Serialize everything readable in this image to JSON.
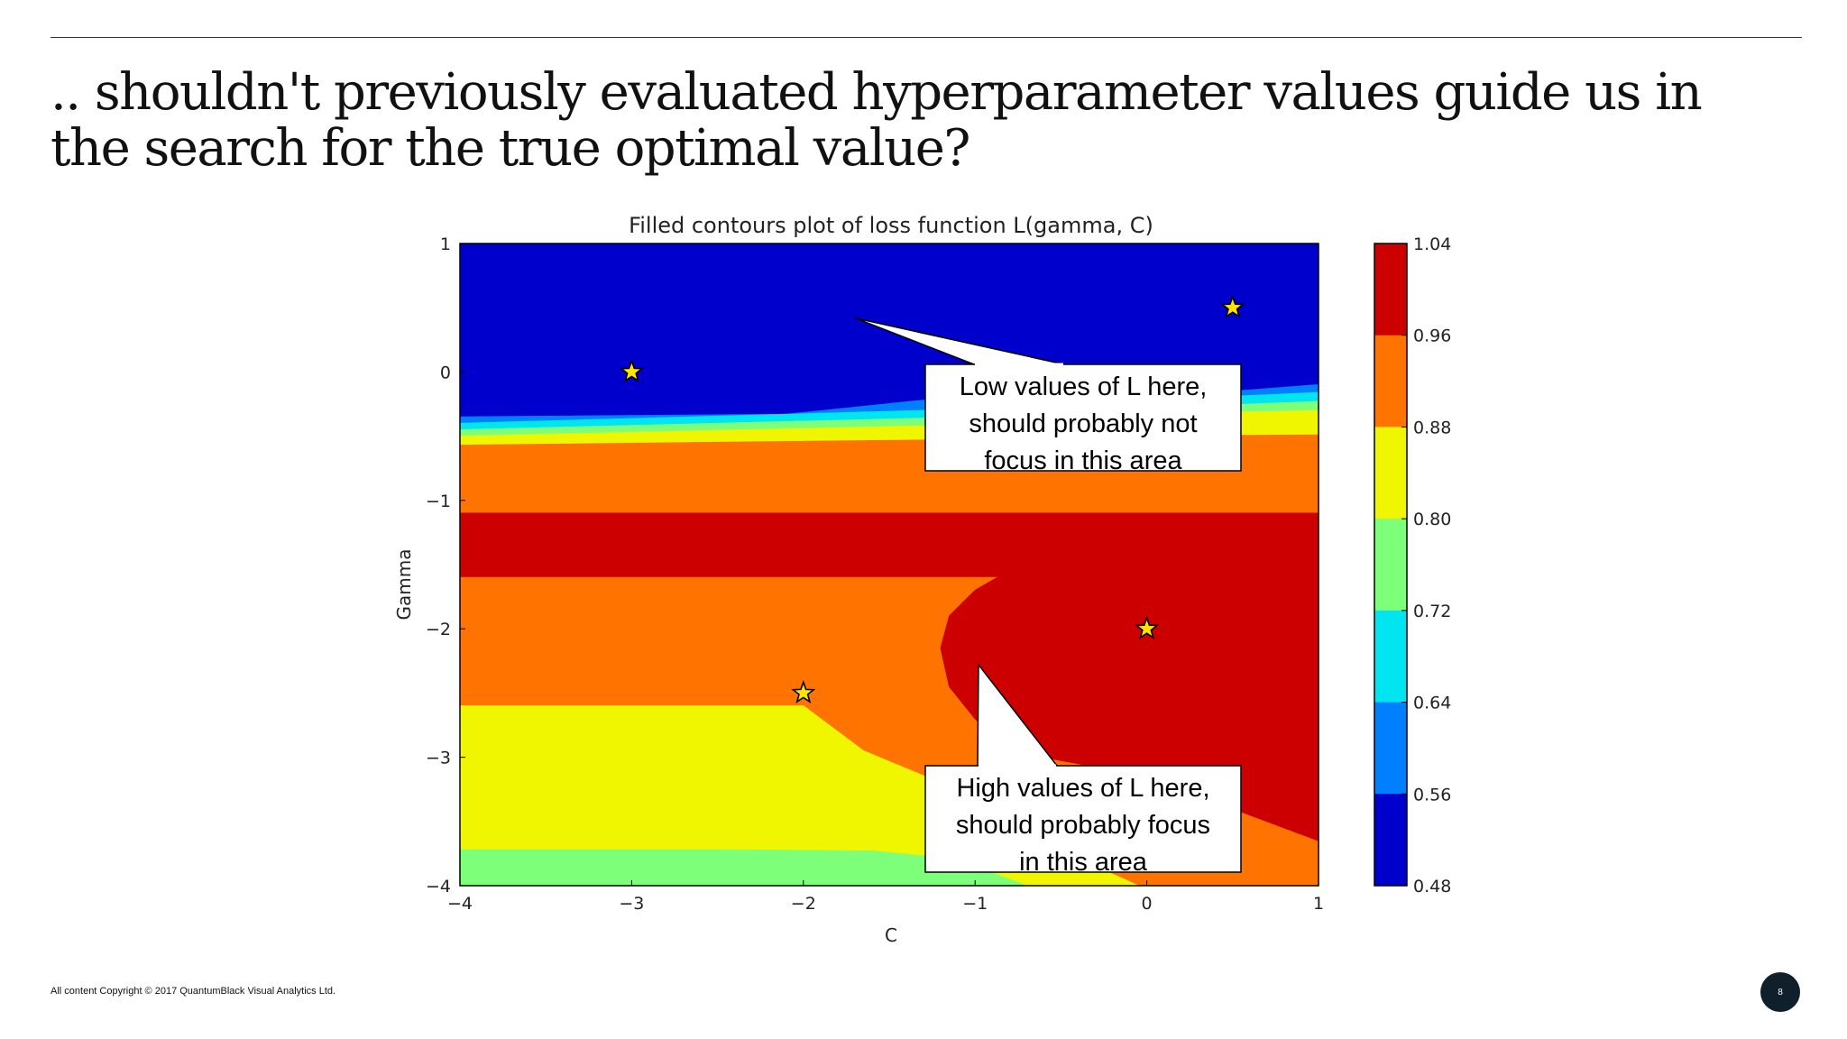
{
  "slide": {
    "title": ".. shouldn't previously evaluated hyperparameter values guide us in the search for the true optimal value?",
    "footer": "All content Copyright © 2017 QuantumBlack Visual Analytics Ltd.",
    "page_number": "8"
  },
  "chart_data": {
    "type": "heatmap",
    "subtype": "filled-contour",
    "title": "Filled contours plot of loss function L(gamma, C)",
    "xlabel": "C",
    "ylabel": "Gamma",
    "xlim": [
      -4,
      1
    ],
    "ylim": [
      -4,
      1
    ],
    "xticks": [
      "−4",
      "−3",
      "−2",
      "−1",
      "0",
      "1"
    ],
    "yticks": [
      "1",
      "0",
      "−1",
      "−2",
      "−3",
      "−4"
    ],
    "grid": false,
    "colorbar": {
      "levels": [
        "1.04",
        "0.96",
        "0.88",
        "0.80",
        "0.72",
        "0.64",
        "0.56",
        "0.48"
      ],
      "colors": [
        "#cc0000",
        "#ff7300",
        "#f0f500",
        "#7dff7a",
        "#00e5f0",
        "#0080ff",
        "#0000cc"
      ],
      "placement": "right"
    },
    "regions": [
      {
        "level": "0.48-0.56",
        "color": "#0000cc",
        "polygon": [
          [
            -4,
            1
          ],
          [
            1,
            1
          ],
          [
            1,
            -0.1
          ],
          [
            0.5,
            -0.15
          ],
          [
            -1.3,
            -0.22
          ],
          [
            -2.1,
            -0.33
          ],
          [
            -4,
            -0.35
          ]
        ]
      },
      {
        "level": "0.56-0.64",
        "color": "#0080ff",
        "polygon": [
          [
            -4,
            -0.35
          ],
          [
            -2.1,
            -0.33
          ],
          [
            -1.3,
            -0.22
          ],
          [
            0.5,
            -0.15
          ],
          [
            1,
            -0.1
          ],
          [
            1,
            -0.16
          ],
          [
            0,
            -0.22
          ],
          [
            -1.3,
            -0.3
          ],
          [
            -4,
            -0.4
          ]
        ]
      },
      {
        "level": "0.64-0.72",
        "color": "#00e5f0",
        "polygon": [
          [
            -4,
            -0.4
          ],
          [
            -1.3,
            -0.3
          ],
          [
            0,
            -0.22
          ],
          [
            1,
            -0.16
          ],
          [
            1,
            -0.23
          ],
          [
            0,
            -0.28
          ],
          [
            -1.3,
            -0.36
          ],
          [
            -4,
            -0.45
          ]
        ]
      },
      {
        "level": "0.72-0.80",
        "color": "#7dff7a",
        "polygon": [
          [
            -4,
            -0.45
          ],
          [
            -1.3,
            -0.36
          ],
          [
            0,
            -0.28
          ],
          [
            1,
            -0.23
          ],
          [
            1,
            -0.3
          ],
          [
            0,
            -0.33
          ],
          [
            -1.3,
            -0.42
          ],
          [
            -4,
            -0.5
          ]
        ]
      },
      {
        "level": "0.80-0.88",
        "color": "#f0f500",
        "polygon": [
          [
            -4,
            -0.5
          ],
          [
            -1.3,
            -0.42
          ],
          [
            0,
            -0.33
          ],
          [
            1,
            -0.3
          ],
          [
            1,
            -0.49
          ],
          [
            0,
            -0.5
          ],
          [
            -1.3,
            -0.53
          ],
          [
            -4,
            -0.57
          ]
        ]
      },
      {
        "level": "0.88-0.96",
        "color": "#ff7300",
        "polygon": [
          [
            -4,
            -0.57
          ],
          [
            -1.3,
            -0.53
          ],
          [
            0,
            -0.5
          ],
          [
            1,
            -0.49
          ],
          [
            1,
            -1.1
          ],
          [
            -4,
            -1.1
          ]
        ]
      },
      {
        "level": "0.96-1.04",
        "color": "#cc0000",
        "polygon": [
          [
            -4,
            -1.1
          ],
          [
            1,
            -1.1
          ],
          [
            1,
            -1.6
          ],
          [
            -4,
            -1.6
          ]
        ]
      },
      {
        "level": "0.88-0.96",
        "color": "#ff7300",
        "polygon": [
          [
            -4,
            -1.6
          ],
          [
            -0.87,
            -1.6
          ],
          [
            -1.0,
            -1.7
          ],
          [
            -1.15,
            -1.9
          ],
          [
            -1.2,
            -2.15
          ],
          [
            -1.15,
            -2.45
          ],
          [
            -1.0,
            -2.7
          ],
          [
            -0.85,
            -2.9
          ],
          [
            -0.6,
            -3.0
          ],
          [
            -0.2,
            -3.1
          ],
          [
            0.3,
            -3.3
          ],
          [
            0.6,
            -3.45
          ],
          [
            1,
            -3.65
          ],
          [
            1,
            -4
          ],
          [
            -4,
            -4
          ]
        ]
      },
      {
        "level": "0.96-1.04",
        "color": "#cc0000",
        "polygon": [
          [
            -0.87,
            -1.6
          ],
          [
            1,
            -1.6
          ],
          [
            1,
            -3.65
          ],
          [
            0.6,
            -3.45
          ],
          [
            0.3,
            -3.3
          ],
          [
            -0.2,
            -3.1
          ],
          [
            -0.6,
            -3.0
          ],
          [
            -0.85,
            -2.9
          ],
          [
            -1.0,
            -2.7
          ],
          [
            -1.15,
            -2.45
          ],
          [
            -1.2,
            -2.15
          ],
          [
            -1.15,
            -1.9
          ],
          [
            -1.0,
            -1.7
          ]
        ]
      },
      {
        "level": "0.80-0.88",
        "color": "#f0f500",
        "polygon": [
          [
            -4,
            -2.6
          ],
          [
            -2,
            -2.6
          ],
          [
            -1.65,
            -2.95
          ],
          [
            -1.2,
            -3.2
          ],
          [
            -0.9,
            -3.4
          ],
          [
            -0.55,
            -3.65
          ],
          [
            -0.3,
            -3.85
          ],
          [
            -0.05,
            -4
          ],
          [
            -4,
            -4
          ]
        ]
      },
      {
        "level": "0.72-0.80",
        "color": "#7dff7a",
        "polygon": [
          [
            -4,
            -3.72
          ],
          [
            -2.5,
            -3.72
          ],
          [
            -1.6,
            -3.73
          ],
          [
            -1.2,
            -3.78
          ],
          [
            -0.9,
            -3.9
          ],
          [
            -0.7,
            -4
          ],
          [
            -4,
            -4
          ]
        ]
      }
    ],
    "evaluated_points": [
      {
        "C": -3,
        "gamma": 0
      },
      {
        "C": 0.5,
        "gamma": 0.5
      },
      {
        "C": 0,
        "gamma": -2
      },
      {
        "C": -2,
        "gamma": -2.5
      }
    ],
    "annotations": [
      {
        "lines": [
          "Low values of L here,",
          "should probably not",
          "focus in this area"
        ],
        "target": {
          "C": -1.7,
          "gamma": 0.42
        }
      },
      {
        "lines": [
          "High values of L here,",
          "should probably focus",
          "in this area"
        ],
        "target": {
          "C": -0.98,
          "gamma": -2.28
        }
      }
    ]
  }
}
